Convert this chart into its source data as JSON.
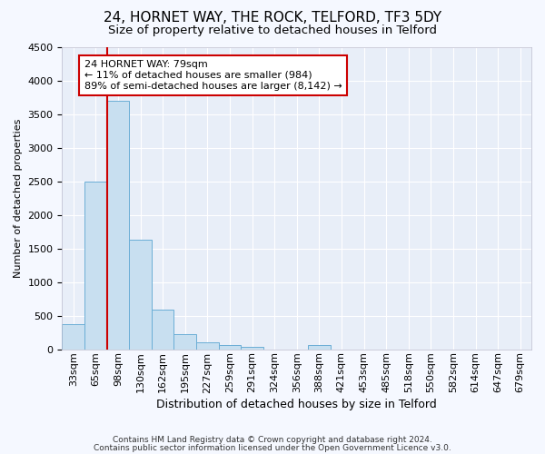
{
  "title": "24, HORNET WAY, THE ROCK, TELFORD, TF3 5DY",
  "subtitle": "Size of property relative to detached houses in Telford",
  "xlabel": "Distribution of detached houses by size in Telford",
  "ylabel": "Number of detached properties",
  "footer_line1": "Contains HM Land Registry data © Crown copyright and database right 2024.",
  "footer_line2": "Contains public sector information licensed under the Open Government Licence v3.0.",
  "bar_labels": [
    "33sqm",
    "65sqm",
    "98sqm",
    "130sqm",
    "162sqm",
    "195sqm",
    "227sqm",
    "259sqm",
    "291sqm",
    "324sqm",
    "356sqm",
    "388sqm",
    "421sqm",
    "453sqm",
    "485sqm",
    "518sqm",
    "550sqm",
    "582sqm",
    "614sqm",
    "647sqm",
    "679sqm"
  ],
  "bar_values": [
    370,
    2500,
    3700,
    1630,
    590,
    220,
    105,
    60,
    40,
    0,
    0,
    60,
    0,
    0,
    0,
    0,
    0,
    0,
    0,
    0,
    0
  ],
  "bar_color": "#c8dff0",
  "bar_edge_color": "#6baed6",
  "vline_x": 1.5,
  "vline_color": "#cc0000",
  "annotation_text": "24 HORNET WAY: 79sqm\n← 11% of detached houses are smaller (984)\n89% of semi-detached houses are larger (8,142) →",
  "annotation_box_color": "#ffffff",
  "annotation_box_edge": "#cc0000",
  "ylim": [
    0,
    4500
  ],
  "background_color": "#f5f8ff",
  "plot_bg_color": "#e8eef8",
  "grid_color": "#ffffff",
  "title_fontsize": 11,
  "subtitle_fontsize": 9.5,
  "xlabel_fontsize": 9,
  "ylabel_fontsize": 8,
  "tick_fontsize": 8,
  "annotation_fontsize": 8
}
